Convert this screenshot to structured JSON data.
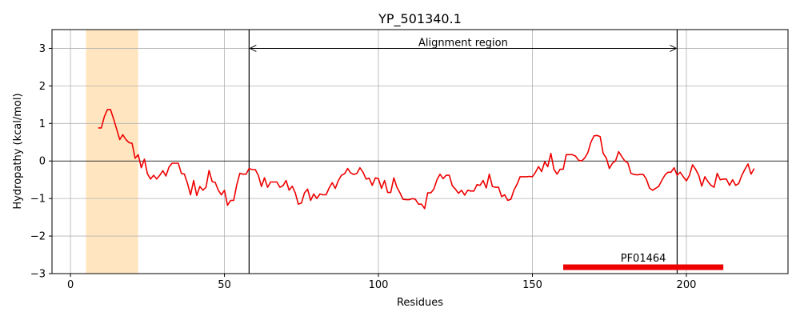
{
  "chart_data": {
    "type": "line",
    "title": "YP_501340.1",
    "xlabel": "Residues",
    "ylabel": "Hydropathy (kcal/mol)",
    "xlim": [
      -6,
      233
    ],
    "ylim": [
      -3,
      3.5
    ],
    "xticks": [
      0,
      50,
      100,
      150,
      200
    ],
    "yticks": [
      -3,
      -2,
      -1,
      0,
      1,
      2,
      3
    ],
    "xtick_labels": [
      "0",
      "50",
      "100",
      "150",
      "200"
    ],
    "ytick_labels": [
      "−3",
      "−2",
      "−1",
      "0",
      "1",
      "2",
      "3"
    ],
    "grid": true,
    "line_color": "#ee0000",
    "series": [
      {
        "x": [
          9,
          10,
          11,
          12,
          13,
          14,
          15,
          16,
          17,
          18,
          19,
          20,
          21,
          22,
          23,
          24,
          25,
          26,
          27,
          28,
          29,
          30,
          31,
          32,
          33,
          34,
          35,
          36,
          37,
          38,
          39,
          40,
          41,
          42,
          43,
          44,
          45,
          46,
          47,
          48,
          49,
          50,
          51,
          52,
          53,
          54,
          55,
          56,
          57,
          58,
          59,
          60,
          61,
          62,
          63,
          64,
          65,
          66,
          67,
          68,
          69,
          70,
          71,
          72,
          73,
          74,
          75,
          76,
          77,
          78,
          79,
          80,
          81,
          82,
          83,
          84,
          85,
          86,
          87,
          88,
          89,
          90,
          91,
          92,
          93,
          94,
          95,
          96,
          97,
          98,
          99,
          100,
          101,
          102,
          103,
          104,
          105,
          106,
          107,
          108,
          109,
          110,
          111,
          112,
          113,
          114,
          115,
          116,
          117,
          118,
          119,
          120,
          121,
          122,
          123,
          124,
          125,
          126,
          127,
          128,
          129,
          130,
          131,
          132,
          133,
          134,
          135,
          136,
          137,
          138,
          139,
          140,
          141,
          142,
          143,
          144,
          145,
          146,
          147,
          148,
          149,
          150,
          151,
          152,
          153,
          154,
          155,
          156,
          157,
          158,
          159,
          160,
          161,
          162,
          163,
          164,
          165,
          166,
          167,
          168,
          169,
          170,
          171,
          172,
          173,
          174,
          175,
          176,
          177,
          178,
          179,
          180,
          181,
          182,
          183,
          184,
          185,
          186,
          187,
          188,
          189,
          190,
          191,
          192,
          193,
          194,
          195,
          196,
          197,
          198,
          199,
          200,
          201,
          202,
          203,
          204,
          205,
          206,
          207,
          208,
          209,
          210,
          211,
          212,
          213,
          214,
          215,
          216,
          217,
          218,
          219,
          220,
          221,
          222
        ],
        "values": [
          0.88,
          0.88,
          1.18,
          1.37,
          1.37,
          1.12,
          0.85,
          0.57,
          0.7,
          0.57,
          0.49,
          0.47,
          0.07,
          0.17,
          -0.18,
          0.05,
          -0.34,
          -0.48,
          -0.38,
          -0.48,
          -0.38,
          -0.26,
          -0.4,
          -0.16,
          -0.06,
          -0.06,
          -0.06,
          -0.33,
          -0.35,
          -0.6,
          -0.9,
          -0.52,
          -0.92,
          -0.68,
          -0.78,
          -0.7,
          -0.25,
          -0.55,
          -0.57,
          -0.78,
          -0.9,
          -0.78,
          -1.18,
          -1.05,
          -1.05,
          -0.63,
          -0.33,
          -0.35,
          -0.35,
          -0.2,
          -0.23,
          -0.23,
          -0.38,
          -0.68,
          -0.45,
          -0.7,
          -0.56,
          -0.56,
          -0.56,
          -0.7,
          -0.66,
          -0.52,
          -0.78,
          -0.67,
          -0.85,
          -1.15,
          -1.12,
          -0.85,
          -0.75,
          -1.05,
          -0.88,
          -1.0,
          -0.88,
          -0.9,
          -0.9,
          -0.72,
          -0.58,
          -0.73,
          -0.52,
          -0.38,
          -0.34,
          -0.2,
          -0.32,
          -0.36,
          -0.33,
          -0.18,
          -0.3,
          -0.48,
          -0.46,
          -0.65,
          -0.45,
          -0.47,
          -0.73,
          -0.52,
          -0.84,
          -0.84,
          -0.45,
          -0.7,
          -0.85,
          -1.02,
          -1.03,
          -1.03,
          -1.0,
          -1.02,
          -1.15,
          -1.15,
          -1.27,
          -0.85,
          -0.85,
          -0.75,
          -0.5,
          -0.35,
          -0.47,
          -0.38,
          -0.38,
          -0.66,
          -0.75,
          -0.86,
          -0.78,
          -0.91,
          -0.78,
          -0.8,
          -0.8,
          -0.63,
          -0.65,
          -0.52,
          -0.72,
          -0.35,
          -0.68,
          -0.7,
          -0.7,
          -0.95,
          -0.9,
          -1.05,
          -1.02,
          -0.78,
          -0.62,
          -0.42,
          -0.42,
          -0.42,
          -0.41,
          -0.42,
          -0.3,
          -0.15,
          -0.28,
          -0.02,
          -0.15,
          0.2,
          -0.22,
          -0.35,
          -0.22,
          -0.22,
          0.17,
          0.17,
          0.17,
          0.13,
          0.02,
          0.0,
          0.08,
          0.22,
          0.5,
          0.67,
          0.68,
          0.65,
          0.2,
          0.08,
          -0.2,
          -0.06,
          0.0,
          0.25,
          0.12,
          0.0,
          -0.05,
          -0.33,
          -0.36,
          -0.37,
          -0.36,
          -0.36,
          -0.48,
          -0.72,
          -0.78,
          -0.73,
          -0.68,
          -0.52,
          -0.38,
          -0.3,
          -0.3,
          -0.18,
          -0.38,
          -0.3,
          -0.42,
          -0.53,
          -0.38,
          -0.1,
          -0.22,
          -0.38,
          -0.67,
          -0.42,
          -0.55,
          -0.65,
          -0.7,
          -0.33,
          -0.5,
          -0.48,
          -0.48,
          -0.65,
          -0.5,
          -0.65,
          -0.6,
          -0.38,
          -0.22,
          -0.08,
          -0.35,
          -0.2
        ]
      }
    ],
    "shaded_region": {
      "x": [
        5,
        22
      ],
      "color": "#ffe6c0"
    },
    "alignment": {
      "label": "Alignment region",
      "x_start": 58,
      "x_end": 197,
      "y": 3.0
    },
    "domain_bar": {
      "label": "PF01464",
      "x_start": 160,
      "x_end": 212,
      "y": -2.83,
      "color": "#ee0000"
    }
  }
}
